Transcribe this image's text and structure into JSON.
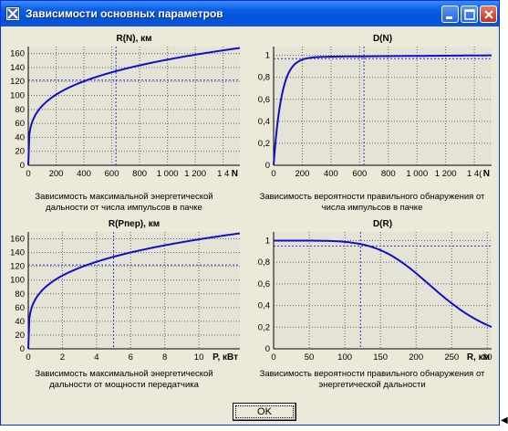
{
  "window": {
    "title": "Зависимости основных параметров",
    "ok_label": "OK"
  },
  "colors": {
    "curve": "#1010c8",
    "guide": "#3030e0",
    "grid": "#666666",
    "plot_bg": "#e5e3d6"
  },
  "icons": {
    "app": "app-icon",
    "minimize": "minimize-icon",
    "maximize": "maximize-icon",
    "close": "close-icon"
  },
  "chart_data": [
    {
      "type": "line",
      "title": "R(N), км",
      "xlabel": "N",
      "ylabel": "R(N), км",
      "xticks": [
        "0",
        "200",
        "400",
        "600",
        "800",
        "1 000",
        "1 200",
        "1 4"
      ],
      "yticks": [
        "0",
        "20",
        "40",
        "60",
        "80",
        "100",
        "120",
        "140",
        "160"
      ],
      "xlim": [
        0,
        1520
      ],
      "ylim": [
        0,
        170
      ],
      "curve": "power",
      "xmax": 1520,
      "ymax": 168,
      "exp": 0.25,
      "guide": {
        "x": 630,
        "y": 122
      },
      "caption": [
        "Зависимость максимальной энергетической",
        "дальности от числа импульсов в пачке"
      ]
    },
    {
      "type": "line",
      "title": "D(N)",
      "xlabel": "N",
      "ylabel": "D(N)",
      "xticks": [
        "0",
        "200",
        "400",
        "600",
        "800",
        "1 000",
        "1 200",
        "1 4("
      ],
      "yticks": [
        "0",
        "0,2",
        "0,4",
        "0,6",
        "0,8",
        "1"
      ],
      "xlim": [
        0,
        1520
      ],
      "ylim": [
        0,
        1.08
      ],
      "curve": "saturation",
      "ymax": 1.0,
      "guide": {
        "x": 630,
        "y": 0.97
      },
      "caption": [
        "Зависимость вероятности правильного обнаружения от",
        "числа импульсов в пачке"
      ]
    },
    {
      "type": "line",
      "title": "R(Рпер), км",
      "xlabel": "P, кВт",
      "ylabel": "R(Рпер), км",
      "xticks": [
        "0",
        "2",
        "4",
        "6",
        "8",
        "10"
      ],
      "yticks": [
        "0",
        "20",
        "40",
        "60",
        "80",
        "100",
        "120",
        "140",
        "160"
      ],
      "xlim": [
        0,
        12.4
      ],
      "ylim": [
        0,
        170
      ],
      "curve": "power",
      "xmax": 12.4,
      "ymax": 168,
      "exp": 0.25,
      "guide": {
        "x": 5,
        "y": 122
      },
      "caption": [
        "Зависимость максимальной энергетической",
        "дальности от мощности передатчика"
      ]
    },
    {
      "type": "line",
      "title": "D(R)",
      "xlabel": "R, км",
      "ylabel": "D(R)",
      "xticks": [
        "0",
        "50",
        "100",
        "150",
        "200",
        "250",
        "30"
      ],
      "yticks": [
        "0",
        "0,2",
        "0,4",
        "0,6",
        "0,8",
        "1"
      ],
      "xlim": [
        0,
        306
      ],
      "ylim": [
        0,
        1.08
      ],
      "curve": "decay",
      "guide": {
        "x": 122,
        "y": 0.95
      },
      "caption": [
        "Зависимость вероятности правильного обнаружения от",
        "энергетической дальности"
      ]
    }
  ]
}
